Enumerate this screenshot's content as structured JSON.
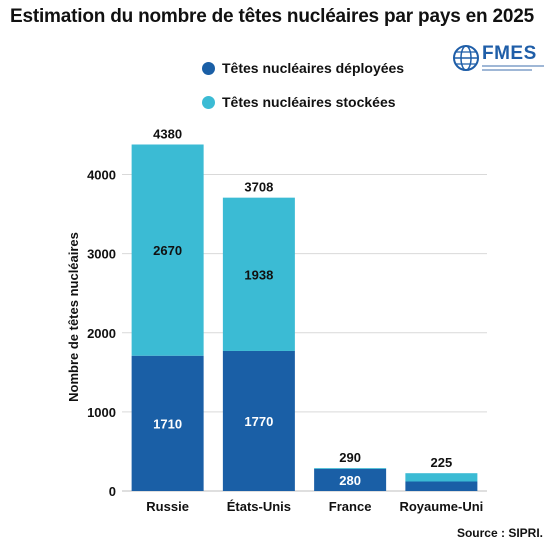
{
  "title": "Estimation du nombre de têtes nucléaires par pays en 2025",
  "logo": {
    "text": "FMES",
    "icon": "globe-icon",
    "color": "#1f5ea8"
  },
  "source": "Source : SIPRI.",
  "chart_data": {
    "type": "bar",
    "stacked": true,
    "title": "Estimation du nombre de têtes nucléaires par pays en 2025",
    "ylabel": "Nombre de têtes nucléaires",
    "xlabel": "",
    "ylim": [
      0,
      4500
    ],
    "yticks": [
      0,
      1000,
      2000,
      3000,
      4000
    ],
    "grid": true,
    "legend_position": "top",
    "categories": [
      "Russie",
      "États-Unis",
      "France",
      "Royaume-Uni"
    ],
    "totals": [
      4380,
      3708,
      290,
      225
    ],
    "series": [
      {
        "name": "Têtes nucléaires déployées",
        "color": "#1a5fa6",
        "values": [
          1710,
          1770,
          280,
          120
        ],
        "labels": [
          "1710",
          "1770",
          "280",
          ""
        ]
      },
      {
        "name": "Têtes nucléaires stockées",
        "color": "#3bbbd4",
        "values": [
          2670,
          1938,
          10,
          105
        ],
        "labels": [
          "2670",
          "1938",
          "",
          ""
        ]
      }
    ]
  }
}
